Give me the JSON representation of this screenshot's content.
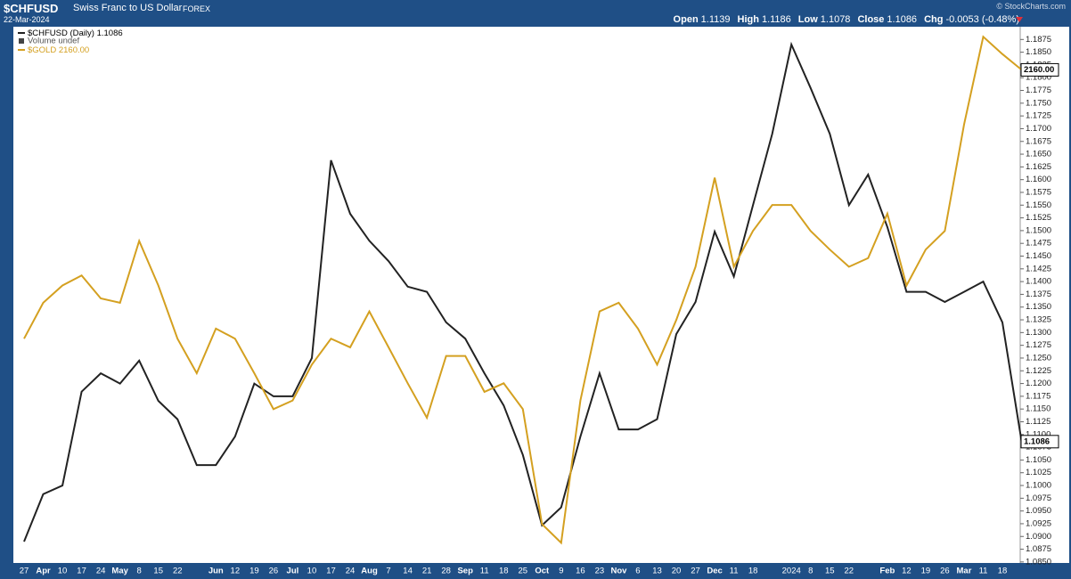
{
  "header": {
    "symbol": "$CHFUSD",
    "name": "Swiss Franc to US Dollar",
    "exchange": "FOREX",
    "date": "22-Mar-2024",
    "credit": "© StockCharts.com",
    "quote": [
      {
        "label": "Open",
        "value": "1.1139"
      },
      {
        "label": "High",
        "value": "1.1186"
      },
      {
        "label": "Low",
        "value": "1.1078"
      },
      {
        "label": "Close",
        "value": "1.1086"
      },
      {
        "label": "Chg",
        "value": "-0.0053 (-0.48%)"
      }
    ]
  },
  "chart_data": {
    "type": "line",
    "categories": [
      "27",
      "Apr",
      "10",
      "17",
      "24",
      "May",
      "8",
      "15",
      "22",
      null,
      "Jun",
      "12",
      "19",
      "26",
      "Jul",
      "10",
      "17",
      "24",
      "Aug",
      "7",
      "14",
      "21",
      "28",
      "Sep",
      "11",
      "18",
      "25",
      "Oct",
      "9",
      "16",
      "23",
      "Nov",
      "6",
      "13",
      "20",
      "27",
      "Dec",
      "11",
      "18",
      null,
      "2024",
      "8",
      "15",
      "22",
      null,
      "Feb",
      "12",
      "19",
      "26",
      "Mar",
      "11",
      "18",
      null
    ],
    "volume_legend": "Volume undef",
    "series": [
      {
        "name": "$CHFUSD (Daily)",
        "color": "#222222",
        "values": [
          1.089,
          1.0983,
          1.1,
          1.1184,
          1.122,
          1.12,
          1.1245,
          1.1166,
          1.113,
          1.104,
          1.104,
          1.1096,
          1.12,
          1.1175,
          1.1175,
          1.125,
          1.1638,
          1.1533,
          1.148,
          1.144,
          1.139,
          1.138,
          1.132,
          1.1288,
          1.122,
          1.1157,
          1.106,
          1.0922,
          1.0957,
          1.1096,
          1.122,
          1.111,
          1.111,
          1.113,
          1.1297,
          1.136,
          1.1498,
          1.141,
          1.155,
          1.169,
          1.1865,
          1.178,
          1.169,
          1.155,
          1.161,
          1.1507,
          1.138,
          1.138,
          1.136,
          1.138,
          1.14,
          1.132,
          1.1086
        ]
      },
      {
        "name": "$GOLD",
        "color": "#d4a020",
        "axis": "y2",
        "values": [
          1973,
          1998,
          2010,
          2017,
          2001,
          1998,
          2041,
          2010,
          1973,
          1949,
          1980,
          1973,
          1949,
          1924,
          1930,
          1955,
          1973,
          1967,
          1992,
          1967,
          1942,
          1918,
          1961,
          1961,
          1936,
          1942,
          1924,
          1844,
          1831,
          1930,
          1992,
          1998,
          1980,
          1955,
          1986,
          2023,
          2085,
          2023,
          2048,
          2066,
          2066,
          2048,
          2035,
          2023,
          2029,
          2060,
          2010,
          2035,
          2048,
          2122,
          2183,
          2171,
          2160
        ],
        "value_labels": [
          null,
          null,
          null,
          null,
          null,
          null,
          null,
          null,
          null,
          null,
          null,
          null,
          null,
          null,
          null,
          null,
          null,
          null,
          null,
          null,
          null,
          null,
          null,
          null,
          null,
          null,
          null,
          null,
          null,
          null,
          null,
          null,
          null,
          null,
          null,
          null,
          null,
          null,
          null,
          null,
          null,
          null,
          null,
          null,
          null,
          null,
          null,
          null,
          null,
          null,
          null,
          null,
          "2160.00"
        ]
      }
    ],
    "ylim": [
      1.0848,
      1.19
    ],
    "yticks": [
      {
        "value": 1.085,
        "label": "1.0850"
      },
      {
        "value": 1.0875,
        "label": "1.0875"
      },
      {
        "value": 1.09,
        "label": "1.0900"
      },
      {
        "value": 1.0925,
        "label": "1.0925"
      },
      {
        "value": 1.095,
        "label": "1.0950"
      },
      {
        "value": 1.0975,
        "label": "1.0975"
      },
      {
        "value": 1.1,
        "label": "1.1000"
      },
      {
        "value": 1.1025,
        "label": "1.1025"
      },
      {
        "value": 1.105,
        "label": "1.1050"
      },
      {
        "value": 1.1075,
        "label": "1.1075"
      },
      {
        "value": 1.11,
        "label": "1.1100"
      },
      {
        "value": 1.1125,
        "label": "1.1125"
      },
      {
        "value": 1.115,
        "label": "1.1150"
      },
      {
        "value": 1.1175,
        "label": "1.1175"
      },
      {
        "value": 1.12,
        "label": "1.1200"
      },
      {
        "value": 1.1225,
        "label": "1.1225"
      },
      {
        "value": 1.125,
        "label": "1.1250"
      },
      {
        "value": 1.1275,
        "label": "1.1275"
      },
      {
        "value": 1.13,
        "label": "1.1300"
      },
      {
        "value": 1.1325,
        "label": "1.1325"
      },
      {
        "value": 1.135,
        "label": "1.1350"
      },
      {
        "value": 1.1375,
        "label": "1.1375"
      },
      {
        "value": 1.14,
        "label": "1.1400"
      },
      {
        "value": 1.1425,
        "label": "1.1425"
      },
      {
        "value": 1.145,
        "label": "1.1450"
      },
      {
        "value": 1.1475,
        "label": "1.1475"
      },
      {
        "value": 1.15,
        "label": "1.1500"
      },
      {
        "value": 1.1525,
        "label": "1.1525"
      },
      {
        "value": 1.155,
        "label": "1.1550"
      },
      {
        "value": 1.1575,
        "label": "1.1575"
      },
      {
        "value": 1.16,
        "label": "1.1600"
      },
      {
        "value": 1.1625,
        "label": "1.1625"
      },
      {
        "value": 1.165,
        "label": "1.1650"
      },
      {
        "value": 1.1675,
        "label": "1.1675"
      },
      {
        "value": 1.17,
        "label": "1.1700"
      },
      {
        "value": 1.1725,
        "label": "1.1725"
      },
      {
        "value": 1.175,
        "label": "1.1750"
      },
      {
        "value": 1.1775,
        "label": "1.1775"
      },
      {
        "value": 1.18,
        "label": "1.1800"
      },
      {
        "value": 1.1825,
        "label": "1.1825"
      },
      {
        "value": 1.185,
        "label": "1.1850"
      },
      {
        "value": 1.1875,
        "label": "1.1875"
      }
    ],
    "y2lim": [
      1817,
      2190
    ],
    "grid": false
  }
}
